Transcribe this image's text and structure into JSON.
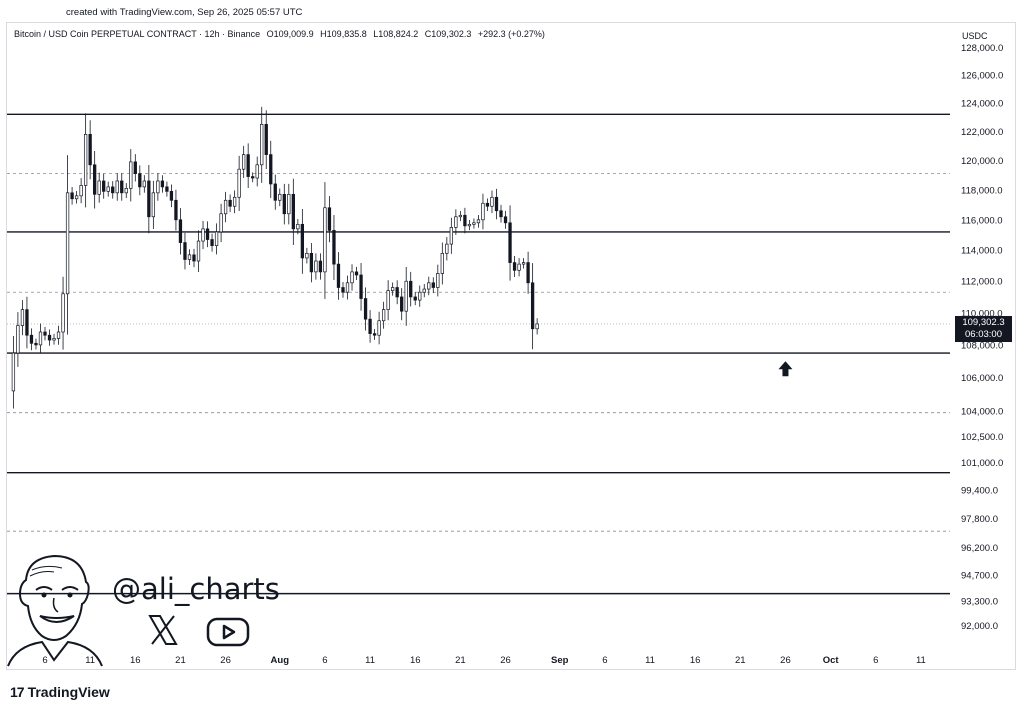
{
  "header": {
    "credit": "created with TradingView.com, Sep 26, 2025 05:57 UTC"
  },
  "legend": {
    "title": "Bitcoin / USD Coin PERPETUAL CONTRACT · 12h · Binance",
    "open": "O109,009.9",
    "high": "H109,835.8",
    "low": "L108,824.2",
    "close": "C109,302.3",
    "change": "+292.3 (+0.27%)"
  },
  "currency_label": "USDC",
  "price_tag": {
    "price": "109,302.3",
    "countdown": "06:03:00"
  },
  "branding": {
    "handle": "@ali_charts",
    "logo_text": "TradingView",
    "logo_mark": "17"
  },
  "icons": [
    "x-logo-icon",
    "youtube-play-icon",
    "arrow-up-icon",
    "tradingview-logo-icon"
  ],
  "colors": {
    "candle_up": "#ffffff",
    "candle_down": "#131722",
    "level_line": "#131722",
    "dashed_line": "#8a8d94"
  },
  "chart_data": {
    "type": "candlestick",
    "interval": "12h",
    "y_axis": {
      "ticks": [
        128000,
        126000,
        124000,
        122000,
        120000,
        118000,
        116000,
        114000,
        112000,
        110000,
        108000,
        106000,
        104000,
        102500,
        101000,
        99400,
        97800,
        96200,
        94700,
        93300,
        92000
      ],
      "tick_labels": [
        "128,000.0",
        "126,000.0",
        "124,000.0",
        "122,000.0",
        "120,000.0",
        "118,000.0",
        "116,000.0",
        "114,000.0",
        "112,000.0",
        "110,000.0",
        "108,000.0",
        "106,000.0",
        "104,000.0",
        "102,500.0",
        "101,000.0",
        "99,400.0",
        "97,800.0",
        "96,200.0",
        "94,700.0",
        "93,300.0",
        "92,000.0"
      ],
      "scale": "log"
    },
    "x_axis": {
      "labels": [
        "6",
        "11",
        "16",
        "21",
        "26",
        "Aug",
        "6",
        "11",
        "16",
        "21",
        "26",
        "Sep",
        "6",
        "11",
        "16",
        "21",
        "26",
        "Oct",
        "6",
        "11"
      ],
      "first_label_date": "2025-07-06",
      "label_dates": [
        "2025-07-06",
        "2025-07-11",
        "2025-07-16",
        "2025-07-21",
        "2025-07-26",
        "2025-08-01",
        "2025-08-06",
        "2025-08-11",
        "2025-08-16",
        "2025-08-21",
        "2025-08-26",
        "2025-09-01",
        "2025-09-06",
        "2025-09-11",
        "2025-09-16",
        "2025-09-21",
        "2025-09-26",
        "2025-10-01",
        "2025-10-06",
        "2025-10-11"
      ]
    },
    "horizontal_levels": [
      {
        "price": 123200,
        "style": "solid"
      },
      {
        "price": 119100,
        "style": "dashed"
      },
      {
        "price": 115200,
        "style": "solid"
      },
      {
        "price": 111300,
        "style": "dashed"
      },
      {
        "price": 107500,
        "style": "solid"
      },
      {
        "price": 103900,
        "style": "dashed"
      },
      {
        "price": 100400,
        "style": "solid"
      },
      {
        "price": 97100,
        "style": "dashed"
      },
      {
        "price": 93700,
        "style": "solid"
      }
    ],
    "last_price_line": 109302.3,
    "close_series_start": "2025-07-02",
    "close_series": [
      105200,
      107500,
      109200,
      110200,
      108600,
      108100,
      108000,
      108800,
      108600,
      108300,
      108400,
      108800,
      111200,
      117800,
      117400,
      117600,
      118300,
      121800,
      119700,
      117700,
      118600,
      117900,
      118200,
      117800,
      118600,
      117800,
      118100,
      119900,
      119100,
      118200,
      118600,
      116200,
      117800,
      118600,
      118200,
      117900,
      117300,
      116000,
      114500,
      113400,
      113700,
      113300,
      114600,
      115400,
      114700,
      114300,
      115200,
      116400,
      117300,
      116900,
      117500,
      119400,
      120400,
      118900,
      118800,
      119700,
      122500,
      120400,
      118400,
      117300,
      117700,
      116400,
      117700,
      115400,
      115700,
      113500,
      113800,
      112600,
      113300,
      112600,
      116800,
      115300,
      113100,
      111600,
      111300,
      111900,
      112600,
      112400,
      110900,
      109600,
      108700,
      108600,
      109500,
      110200,
      111400,
      111600,
      111000,
      110100,
      112000,
      111000,
      110800,
      111300,
      111500,
      111900,
      111600,
      112500,
      113800,
      114400,
      115500,
      116200,
      116300,
      115600,
      115700,
      115800,
      116000,
      117100,
      116900,
      117500,
      116600,
      116200,
      115800,
      113200,
      112700,
      113100,
      113200,
      111900,
      109000,
      109302
    ]
  },
  "annotation": {
    "type": "arrow-up",
    "near_date": "2025-09-26"
  }
}
